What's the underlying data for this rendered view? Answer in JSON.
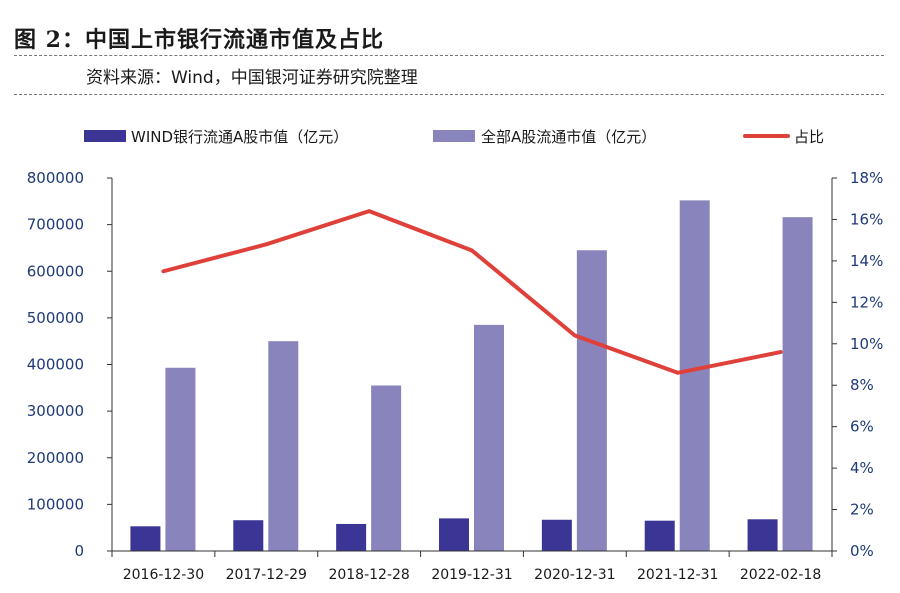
{
  "figure": {
    "title": "图 2：中国上市银行流通市值及占比",
    "source": "资料来源：Wind，中国银河证券研究院整理"
  },
  "chart_data": {
    "type": "bar",
    "categories": [
      "2016-12-30",
      "2017-12-29",
      "2018-12-28",
      "2019-12-31",
      "2020-12-31",
      "2021-12-31",
      "2022-02-18"
    ],
    "series": [
      {
        "name": "WIND银行流通A股市值（亿元）",
        "kind": "bar",
        "axis": "left",
        "color": "#3b3596",
        "values": [
          53000,
          66000,
          58000,
          70000,
          67000,
          65000,
          68000
        ]
      },
      {
        "name": "全部A股流通市值（亿元）",
        "kind": "bar",
        "axis": "left",
        "color": "#8a84bd",
        "values": [
          393000,
          450000,
          355000,
          485000,
          645000,
          752000,
          716000
        ]
      },
      {
        "name": "占比",
        "kind": "line",
        "axis": "right",
        "color": "#e0403a",
        "values": [
          13.5,
          14.8,
          16.4,
          14.5,
          10.4,
          8.6,
          9.6
        ]
      }
    ],
    "left_axis": {
      "ylim": [
        0,
        800000
      ],
      "ticks": [
        "0",
        "100000",
        "200000",
        "300000",
        "400000",
        "500000",
        "600000",
        "700000",
        "800000"
      ]
    },
    "right_axis": {
      "ylim": [
        0,
        18
      ],
      "ticks": [
        "0%",
        "2%",
        "4%",
        "6%",
        "8%",
        "10%",
        "12%",
        "14%",
        "16%",
        "18%"
      ]
    },
    "legend_position": "top",
    "grid": false
  }
}
